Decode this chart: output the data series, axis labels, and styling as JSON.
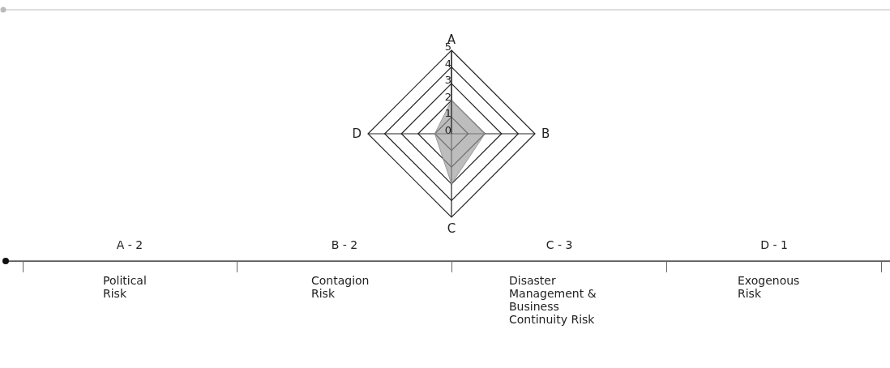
{
  "chart_data": {
    "type": "radar",
    "categories": [
      "A",
      "B",
      "C",
      "D"
    ],
    "series": [
      {
        "color": "#9a9a9a",
        "values": [
          2,
          2,
          3,
          1
        ]
      }
    ],
    "ylim": [
      0,
      5
    ],
    "yticks": [
      0,
      1,
      2,
      3,
      4,
      5
    ],
    "grid": true,
    "annotations": [
      "A - 2",
      "Political Risk",
      "B - 2",
      "Contagion Risk",
      "C - 3",
      "Disaster Management & Business Continuity Risk",
      "D - 1",
      "Exogenous Risk"
    ]
  }
}
